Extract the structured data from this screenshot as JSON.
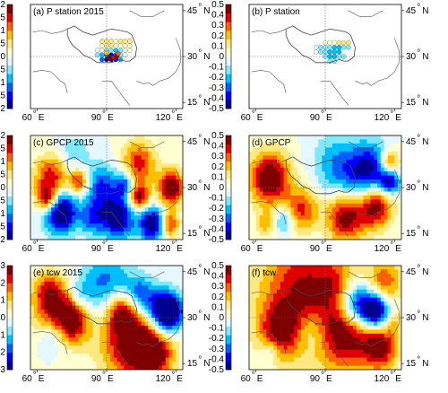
{
  "chart_data": {
    "type": "heatmap",
    "colormap": [
      "#00008f",
      "#0000ff",
      "#0060ff",
      "#00bfff",
      "#7fe9ff",
      "#e5f7ff",
      "#ffffd0",
      "#ffe97f",
      "#ffbf00",
      "#ff6000",
      "#df0000",
      "#7f0000"
    ],
    "lon_ticks": [
      "60",
      "90",
      "120"
    ],
    "lon_unit": "E",
    "lat_ticks": [
      "45",
      "30",
      "15"
    ],
    "lat_unit": "N",
    "panels": [
      {
        "id": "a",
        "title": "(a)  P station 2015",
        "cbar_ticks": [
          "2",
          "1.5",
          "1",
          "0.5",
          "0",
          "-0.5",
          "-1",
          "-1.5",
          "-2"
        ],
        "vmin": -2,
        "vmax": 2,
        "kind": "stations",
        "stations": [
          [
            88,
            35,
            0.5
          ],
          [
            90,
            35,
            0.6
          ],
          [
            92,
            35,
            0.4
          ],
          [
            94,
            35,
            0.3
          ],
          [
            96,
            35,
            0.4
          ],
          [
            98,
            35,
            0.5
          ],
          [
            100,
            35,
            0.5
          ],
          [
            88,
            33.5,
            0.3
          ],
          [
            90,
            33.5,
            0.4
          ],
          [
            92,
            33.5,
            0.5
          ],
          [
            94,
            33.5,
            0.2
          ],
          [
            96,
            33.5,
            0.1
          ],
          [
            98,
            33.5,
            0.2
          ],
          [
            100,
            33.5,
            0.3
          ],
          [
            86,
            32,
            -0.2
          ],
          [
            88,
            32,
            -0.3
          ],
          [
            90,
            32,
            -0.5
          ],
          [
            92,
            32,
            -0.6
          ],
          [
            94,
            32,
            -0.8
          ],
          [
            96,
            32,
            -0.4
          ],
          [
            98,
            32,
            -0.2
          ],
          [
            100,
            32,
            0.1
          ],
          [
            86,
            30.5,
            -0.6
          ],
          [
            88,
            30.5,
            -0.9
          ],
          [
            90,
            30.5,
            -1.3
          ],
          [
            92,
            30.5,
            -1.6
          ],
          [
            94,
            30.5,
            -1.1
          ],
          [
            96,
            30.5,
            -0.5
          ],
          [
            98,
            30.5,
            -0.3
          ],
          [
            88,
            29,
            -1.2
          ],
          [
            90,
            29,
            -1.8
          ],
          [
            92,
            29,
            -2.0
          ],
          [
            94,
            29,
            -1.4
          ],
          [
            96,
            29,
            -0.7
          ],
          [
            91,
            29.5,
            2.0
          ],
          [
            93,
            29.7,
            1.6
          ],
          [
            94.5,
            30.2,
            1.9
          ],
          [
            95,
            31,
            1.2
          ],
          [
            90,
            31.2,
            0.9
          ]
        ]
      },
      {
        "id": "b",
        "title": "(b)  P station",
        "cbar_ticks": [
          "0.5",
          "0.4",
          "0.3",
          "0.2",
          "0.1",
          "0",
          "-0.1",
          "-0.2",
          "-0.3",
          "-0.4",
          "-0.5"
        ],
        "vmin": -0.5,
        "vmax": 0.5,
        "kind": "stations",
        "stations": [
          [
            90,
            34.5,
            0.05
          ],
          [
            92,
            34.5,
            0.05
          ],
          [
            94,
            34.5,
            0.08
          ],
          [
            96,
            34.5,
            0.1
          ],
          [
            98,
            34.5,
            0.1
          ],
          [
            100,
            34.5,
            0.12
          ],
          [
            86,
            33,
            -0.05
          ],
          [
            88,
            33,
            -0.1
          ],
          [
            90,
            33,
            -0.12
          ],
          [
            92,
            33,
            -0.15
          ],
          [
            94,
            33,
            -0.2
          ],
          [
            96,
            33,
            -0.18
          ],
          [
            98,
            33,
            -0.15
          ],
          [
            100,
            33,
            -0.1
          ],
          [
            86,
            31.5,
            -0.08
          ],
          [
            88,
            31.5,
            -0.12
          ],
          [
            90,
            31.5,
            -0.15
          ],
          [
            92,
            31.5,
            -0.22
          ],
          [
            94,
            31.5,
            -0.25
          ],
          [
            96,
            31.5,
            -0.2
          ],
          [
            90,
            30,
            -0.15
          ],
          [
            92,
            30,
            -0.2
          ],
          [
            94,
            30,
            -0.22
          ],
          [
            96,
            30,
            -0.15
          ],
          [
            98,
            30,
            -0.1
          ],
          [
            92,
            28.5,
            -0.1
          ],
          [
            94,
            28.5,
            -0.1
          ]
        ]
      },
      {
        "id": "c",
        "title": "(c)  GPCP 2015",
        "cbar_ticks": [
          "2",
          "1.5",
          "1",
          "0.5",
          "0",
          "-0.5",
          "-1",
          "-1.5",
          "-2"
        ],
        "vmin": -2,
        "vmax": 2,
        "kind": "field",
        "blobs": [
          [
            70,
            22,
            5,
            -2.4
          ],
          [
            95,
            20,
            5,
            -2.0
          ],
          [
            110,
            18,
            4,
            -2.2
          ],
          [
            118,
            30,
            4,
            2.2
          ],
          [
            104,
            27,
            3,
            2.0
          ],
          [
            66,
            33,
            5,
            1.7
          ],
          [
            78,
            32,
            3,
            1.6
          ],
          [
            104,
            38,
            5,
            1.5
          ],
          [
            88,
            30,
            5,
            -1.4
          ],
          [
            98,
            31,
            3,
            -1.3
          ],
          [
            64,
            26,
            3,
            1.8
          ],
          [
            84,
            20,
            4,
            -1.2
          ],
          [
            117,
            18,
            3,
            1.6
          ],
          [
            76,
            41,
            5,
            -0.6
          ]
        ]
      },
      {
        "id": "d",
        "title": "(d)  GPCP",
        "cbar_ticks": [
          "0.5",
          "0.4",
          "0.3",
          "0.2",
          "0.1",
          "0",
          "-0.1",
          "-0.2",
          "-0.3",
          "-0.4",
          "-0.5"
        ],
        "vmin": -0.5,
        "vmax": 0.5,
        "kind": "field",
        "blobs": [
          [
            66,
            33,
            6,
            0.55
          ],
          [
            99,
            21,
            6,
            0.55
          ],
          [
            112,
            24,
            5,
            0.5
          ],
          [
            80,
            23,
            5,
            0.35
          ],
          [
            118,
            38,
            3,
            0.4
          ],
          [
            100,
            33,
            8,
            -0.3
          ],
          [
            110,
            36,
            6,
            -0.35
          ],
          [
            118,
            32,
            3,
            -0.45
          ],
          [
            72,
            19,
            3,
            -0.25
          ],
          [
            92,
            40,
            6,
            -0.1
          ],
          [
            64,
            18,
            3,
            0.2
          ]
        ]
      },
      {
        "id": "e",
        "title": "(e)  tcw 2015",
        "cbar_ticks": [
          "3",
          "2",
          "1",
          "0",
          "-1",
          "-2",
          "-3"
        ],
        "vmin": -3,
        "vmax": 3,
        "kind": "field",
        "blobs": [
          [
            68,
            33,
            7,
            2.5
          ],
          [
            76,
            29,
            5,
            2.4
          ],
          [
            100,
            23,
            9,
            3.0
          ],
          [
            110,
            19,
            6,
            3.0
          ],
          [
            96,
            32,
            4,
            2.0
          ],
          [
            112,
            33,
            5,
            -2.6
          ],
          [
            118,
            32,
            4,
            -3.2
          ],
          [
            90,
            41,
            8,
            -1.8
          ],
          [
            66,
            24,
            4,
            -1.2
          ],
          [
            78,
            37,
            4,
            -1.2
          ],
          [
            64,
            39,
            4,
            1.2
          ],
          [
            114,
            26,
            4,
            -1.0
          ],
          [
            104,
            38,
            4,
            -1.8
          ]
        ]
      },
      {
        "id": "f",
        "title": "(f)  tcw",
        "cbar_ticks": [
          "0.5",
          "0.4",
          "0.3",
          "0.2",
          "0.1",
          "0",
          "-0.1",
          "-0.2",
          "-0.3",
          "-0.4",
          "-0.5"
        ],
        "vmin": -0.5,
        "vmax": 0.5,
        "kind": "field",
        "blobs": [
          [
            82,
            38,
            14,
            0.45
          ],
          [
            100,
            24,
            8,
            0.4
          ],
          [
            114,
            20,
            5,
            0.45
          ],
          [
            70,
            26,
            6,
            0.35
          ],
          [
            116,
            42,
            5,
            0.3
          ],
          [
            104,
            34,
            5,
            -0.55
          ],
          [
            112,
            32,
            4,
            -0.6
          ],
          [
            84,
            26,
            5,
            -0.2
          ],
          [
            66,
            19,
            3,
            -0.15
          ],
          [
            94,
            42,
            4,
            0.1
          ],
          [
            120,
            28,
            3,
            0.15
          ]
        ]
      }
    ]
  }
}
